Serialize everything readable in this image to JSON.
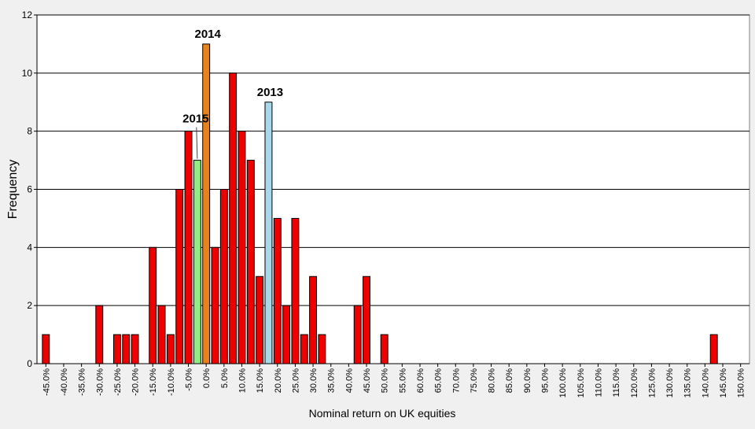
{
  "chart_data": {
    "type": "bar",
    "xlabel": "Nominal return on UK equities",
    "ylabel": "Frequency",
    "ylim": [
      0,
      12
    ],
    "yticks": [
      0,
      2,
      4,
      6,
      8,
      10,
      12
    ],
    "grid": true,
    "bin_width": 2.5,
    "x_range": [
      -47.5,
      152.5
    ],
    "xtick_values": [
      -45,
      -40,
      -35,
      -30,
      -25,
      -20,
      -15,
      -10,
      -5,
      0,
      5,
      10,
      15,
      20,
      25,
      30,
      35,
      40,
      45,
      50,
      55,
      60,
      65,
      70,
      75,
      80,
      85,
      90,
      95,
      100,
      105,
      110,
      115,
      120,
      125,
      130,
      135,
      140,
      145,
      150
    ],
    "xtick_labels": [
      "-45.0%",
      "-40.0%",
      "-35.0%",
      "-30.0%",
      "-25.0%",
      "-20.0%",
      "-15.0%",
      "-10.0%",
      "-5.0%",
      "0.0%",
      "5.0%",
      "10.0%",
      "15.0%",
      "20.0%",
      "25.0%",
      "30.0%",
      "35.0%",
      "40.0%",
      "45.0%",
      "50.0%",
      "55.0%",
      "60.0%",
      "65.0%",
      "70.0%",
      "75.0%",
      "80.0%",
      "85.0%",
      "90.0%",
      "95.0%",
      "100.0%",
      "105.0%",
      "110.0%",
      "115.0%",
      "120.0%",
      "125.0%",
      "130.0%",
      "135.0%",
      "140.0%",
      "145.0%",
      "150.0%"
    ],
    "bins": [
      {
        "x": -45,
        "value": 1
      },
      {
        "x": -30,
        "value": 2
      },
      {
        "x": -25,
        "value": 1
      },
      {
        "x": -22.5,
        "value": 1
      },
      {
        "x": -20,
        "value": 1
      },
      {
        "x": -15,
        "value": 4
      },
      {
        "x": -12.5,
        "value": 2
      },
      {
        "x": -10,
        "value": 1
      },
      {
        "x": -7.5,
        "value": 6
      },
      {
        "x": -5,
        "value": 8
      },
      {
        "x": -2.5,
        "value": 7,
        "highlight": "2015"
      },
      {
        "x": 0,
        "value": 11,
        "highlight": "2014"
      },
      {
        "x": 2.5,
        "value": 4
      },
      {
        "x": 5,
        "value": 6
      },
      {
        "x": 7.5,
        "value": 10
      },
      {
        "x": 10,
        "value": 8
      },
      {
        "x": 12.5,
        "value": 7
      },
      {
        "x": 15,
        "value": 3
      },
      {
        "x": 17.5,
        "value": 9,
        "highlight": "2013"
      },
      {
        "x": 20,
        "value": 5
      },
      {
        "x": 22.5,
        "value": 2
      },
      {
        "x": 25,
        "value": 5
      },
      {
        "x": 27.5,
        "value": 1
      },
      {
        "x": 30,
        "value": 3
      },
      {
        "x": 32.5,
        "value": 1
      },
      {
        "x": 42.5,
        "value": 2
      },
      {
        "x": 45,
        "value": 3
      },
      {
        "x": 50,
        "value": 1
      },
      {
        "x": 142.5,
        "value": 1
      }
    ],
    "annotations": [
      {
        "text": "2014",
        "bin_x": 0
      },
      {
        "text": "2013",
        "bin_x": 17.5
      },
      {
        "text": "2015",
        "bin_x": -2.5
      }
    ],
    "colors": {
      "default": "#ee0000",
      "2014": "#e8821e",
      "2013": "#a8d8ea",
      "2015": "#90ee80",
      "plot_bg": "#ffffff",
      "page_bg": "#f0f0f0",
      "grid": "#000000"
    }
  }
}
